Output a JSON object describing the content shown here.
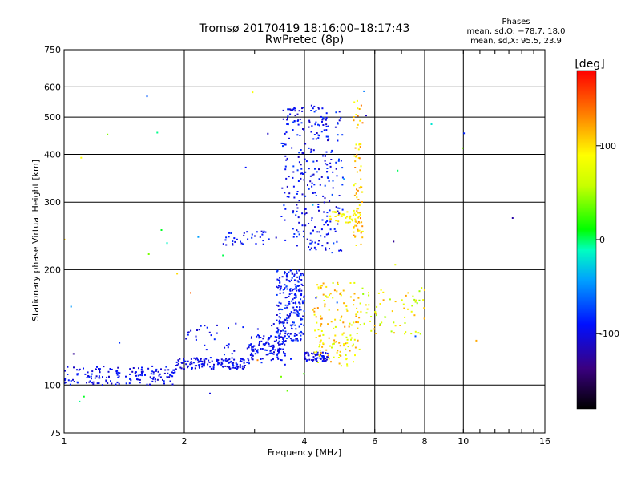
{
  "chart_data": {
    "type": "scatter",
    "title": "Tromsø 20170419 18:16:00–18:17:43",
    "subtitle": "RwPretec (8p)",
    "xlabel": "Frequency [MHz]",
    "ylabel": "Stationary phase Virtual Height [km]",
    "x_scale": "log",
    "y_scale": "log",
    "xlim": [
      1,
      16
    ],
    "ylim": [
      75,
      750
    ],
    "x_ticks": [
      {
        "value": 1,
        "label": "1"
      },
      {
        "value": 2,
        "label": "2"
      },
      {
        "value": 4,
        "label": "4"
      },
      {
        "value": 6,
        "label": "6"
      },
      {
        "value": 8,
        "label": "8"
      },
      {
        "value": 10,
        "label": "10"
      },
      {
        "value": 16,
        "label": "16"
      }
    ],
    "y_ticks": [
      {
        "value": 75,
        "label": "75"
      },
      {
        "value": 100,
        "label": "100"
      },
      {
        "value": 200,
        "label": "200"
      },
      {
        "value": 300,
        "label": "300"
      },
      {
        "value": 400,
        "label": "400"
      },
      {
        "value": 500,
        "label": "500"
      },
      {
        "value": 600,
        "label": "600"
      },
      {
        "value": 750,
        "label": "750"
      }
    ],
    "grid": true,
    "phase_stats": {
      "title": "Phases",
      "line_o": "mean, sd,O: −78.7, 18.0",
      "line_x": "mean, sd,X:  95.5, 23.9"
    },
    "colorbar": {
      "label": "[deg]",
      "min": -180,
      "max": 180,
      "ticks": [
        {
          "value": 100,
          "label": "100"
        },
        {
          "value": 0,
          "label": "0"
        },
        {
          "value": -100,
          "label": "-100"
        }
      ]
    },
    "traces": [
      {
        "x_range": [
          1.0,
          1.9
        ],
        "y_range": [
          100,
          112
        ],
        "phase_range": [
          -115,
          -80
        ],
        "count": 160
      },
      {
        "x_range": [
          1.9,
          2.9
        ],
        "y_range": [
          110,
          118
        ],
        "phase_range": [
          -115,
          -85
        ],
        "count": 130
      },
      {
        "x_range": [
          2.9,
          3.6
        ],
        "y_range": [
          116,
          135
        ],
        "phase_range": [
          -110,
          -80
        ],
        "count": 110
      },
      {
        "x_range": [
          2.0,
          3.7
        ],
        "y_range": [
          112,
          145
        ],
        "phase_range": [
          -110,
          -80
        ],
        "count": 60
      },
      {
        "x_range": [
          3.4,
          4.0
        ],
        "y_range": [
          130,
          200
        ],
        "phase_range": [
          -110,
          -70
        ],
        "count": 230
      },
      {
        "x_range": [
          2.5,
          3.4
        ],
        "y_range": [
          232,
          252
        ],
        "phase_range": [
          -110,
          -80
        ],
        "count": 35
      },
      {
        "x_range": [
          3.5,
          4.6
        ],
        "y_range": [
          225,
          540
        ],
        "phase_range": [
          -115,
          -75
        ],
        "count": 240
      },
      {
        "x_range": [
          4.0,
          4.6
        ],
        "y_range": [
          115,
          122
        ],
        "phase_range": [
          -115,
          -85
        ],
        "count": 60
      },
      {
        "x_range": [
          4.2,
          5.5
        ],
        "y_range": [
          112,
          185
        ],
        "phase_range": [
          60,
          130
        ],
        "count": 150
      },
      {
        "x_range": [
          4.6,
          5.5
        ],
        "y_range": [
          265,
          285
        ],
        "phase_range": [
          70,
          110
        ],
        "count": 40
      },
      {
        "x_range": [
          5.3,
          5.6
        ],
        "y_range": [
          230,
          560
        ],
        "phase_range": [
          80,
          140
        ],
        "count": 80
      },
      {
        "x_range": [
          4.5,
          5.0
        ],
        "y_range": [
          220,
          520
        ],
        "phase_range": [
          -115,
          -70
        ],
        "count": 60
      },
      {
        "x_range": [
          5.5,
          8.0
        ],
        "y_range": [
          135,
          180
        ],
        "phase_range": [
          40,
          120
        ],
        "count": 70
      },
      {
        "x_range": [
          1.0,
          14.5
        ],
        "y_range": [
          90,
          650
        ],
        "phase_range": [
          -150,
          160
        ],
        "count": 40
      }
    ]
  }
}
